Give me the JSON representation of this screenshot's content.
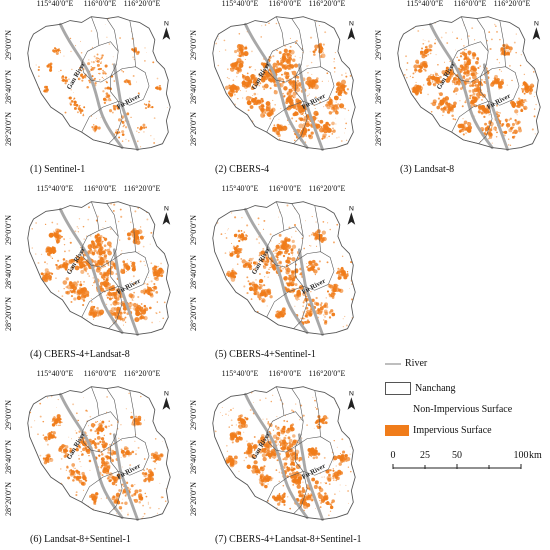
{
  "ticks": {
    "lon": [
      "115°40′0″E",
      "116°0′0″E",
      "116°20′0″E"
    ],
    "lat": [
      "29°0′0″N",
      "28°40′0″N",
      "28°20′0″N"
    ]
  },
  "north": "N",
  "river_labels": {
    "gan": "Gan River",
    "fu": "Fu River"
  },
  "panels": [
    {
      "caption": "(1) Sentinel-1",
      "impervious_level": 0.25
    },
    {
      "caption": "(2) CBERS-4",
      "impervious_level": 0.9
    },
    {
      "caption": "(3) Landsat-8",
      "impervious_level": 0.75
    },
    {
      "caption": "(4) CBERS-4+Landsat-8",
      "impervious_level": 0.85
    },
    {
      "caption": "(5) CBERS-4+Sentinel-1",
      "impervious_level": 0.7
    },
    {
      "caption": "(6) Landsat-8+Sentinel-1",
      "impervious_level": 0.6
    },
    {
      "caption": "(7) CBERS-4+Landsat-8+Sentinel-1",
      "impervious_level": 0.8
    }
  ],
  "legend": {
    "river": "River",
    "nanchang": "Nanchang",
    "non_impervious": "Non-Impervious Surface",
    "impervious": "Impervious Surface"
  },
  "scalebar": {
    "ticks": [
      "0",
      "25",
      "50",
      "100"
    ],
    "unit": "km"
  },
  "colors": {
    "impervious": "#f07c1a",
    "river": "#a8a8a8",
    "boundary": "#555555"
  }
}
